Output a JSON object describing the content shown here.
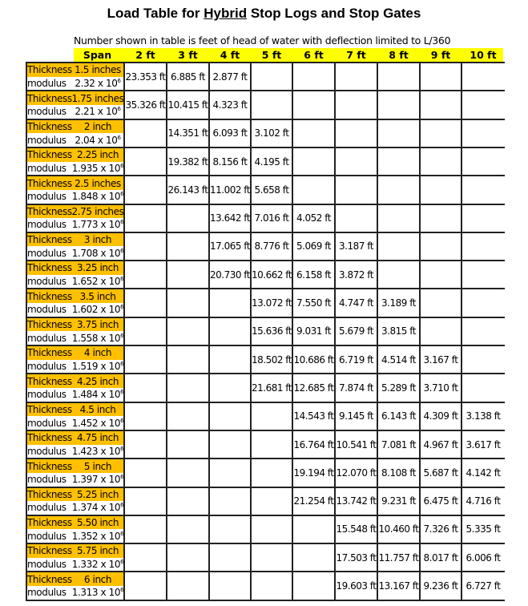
{
  "title": {
    "prefix": "Load Table for ",
    "emphasis": "Hybrid",
    "suffix": " Stop Logs and Stop Gates"
  },
  "subtitle": "Number shown in table is feet of head of water with deflection limited to L/360",
  "colors": {
    "header_bg": "#FFFF00",
    "thickness_bg": "#FFC000",
    "border": "#222222"
  },
  "header": {
    "span_label": "Span",
    "spans": [
      "2 ft",
      "3 ft",
      "4 ft",
      "5 ft",
      "6 ft",
      "7 ft",
      "8 ft",
      "9 ft",
      "10 ft"
    ]
  },
  "labels": {
    "thickness": "Thickness",
    "modulus": "modulus",
    "modulus_suffix": " x 10",
    "modulus_exponent": "6"
  },
  "rows": [
    {
      "thickness": "1.5 inches",
      "modulus": "2.32",
      "values": [
        "23.353 ft",
        "6.885 ft",
        "2.877 ft",
        null,
        null,
        null,
        null,
        null,
        null
      ]
    },
    {
      "thickness": "1.75 inches",
      "modulus": "2.21",
      "values": [
        "35.326 ft",
        "10.415 ft",
        "4.323 ft",
        null,
        null,
        null,
        null,
        null,
        null
      ]
    },
    {
      "thickness": "2 inch",
      "modulus": "2.04",
      "values": [
        null,
        "14.351 ft",
        "6.093 ft",
        "3.102 ft",
        null,
        null,
        null,
        null,
        null
      ]
    },
    {
      "thickness": "2.25 inch",
      "modulus": "1.935",
      "values": [
        null,
        "19.382 ft",
        "8.156 ft",
        "4.195 ft",
        null,
        null,
        null,
        null,
        null
      ]
    },
    {
      "thickness": "2.5 inches",
      "modulus": "1.848",
      "values": [
        null,
        "26.143 ft",
        "11.002 ft",
        "5.658 ft",
        null,
        null,
        null,
        null,
        null
      ]
    },
    {
      "thickness": "2.75 inches",
      "modulus": "1.773",
      "values": [
        null,
        null,
        "13.642 ft",
        "7.016 ft",
        "4.052 ft",
        null,
        null,
        null,
        null
      ]
    },
    {
      "thickness": "3 inch",
      "modulus": "1.708",
      "values": [
        null,
        null,
        "17.065 ft",
        "8.776 ft",
        "5.069 ft",
        "3.187 ft",
        null,
        null,
        null
      ]
    },
    {
      "thickness": "3.25 inch",
      "modulus": "1.652",
      "values": [
        null,
        null,
        "20.730 ft",
        "10.662 ft",
        "6.158 ft",
        "3.872 ft",
        null,
        null,
        null
      ]
    },
    {
      "thickness": "3.5 inch",
      "modulus": "1.602",
      "values": [
        null,
        null,
        null,
        "13.072 ft",
        "7.550 ft",
        "4.747 ft",
        "3.189 ft",
        null,
        null
      ]
    },
    {
      "thickness": "3.75 inch",
      "modulus": "1.558",
      "values": [
        null,
        null,
        null,
        "15.636 ft",
        "9.031 ft",
        "5.679 ft",
        "3.815 ft",
        null,
        null
      ]
    },
    {
      "thickness": "4 inch",
      "modulus": "1.519",
      "values": [
        null,
        null,
        null,
        "18.502 ft",
        "10.686 ft",
        "6.719 ft",
        "4.514 ft",
        "3.167 ft",
        null
      ]
    },
    {
      "thickness": "4.25 inch",
      "modulus": "1.484",
      "values": [
        null,
        null,
        null,
        "21.681 ft",
        "12.685 ft",
        "7.874 ft",
        "5.289 ft",
        "3.710 ft",
        null
      ]
    },
    {
      "thickness": "4.5 inch",
      "modulus": "1.452",
      "values": [
        null,
        null,
        null,
        null,
        "14.543 ft",
        "9.145 ft",
        "6.143 ft",
        "4.309 ft",
        "3.138 ft"
      ]
    },
    {
      "thickness": "4.75 inch",
      "modulus": "1.423",
      "values": [
        null,
        null,
        null,
        null,
        "16.764 ft",
        "10.541 ft",
        "7.081 ft",
        "4.967 ft",
        "3.617 ft"
      ]
    },
    {
      "thickness": "5 inch",
      "modulus": "1.397",
      "values": [
        null,
        null,
        null,
        null,
        "19.194 ft",
        "12.070 ft",
        "8.108 ft",
        "5.687 ft",
        "4.142 ft"
      ]
    },
    {
      "thickness": "5.25 inch",
      "modulus": "1.374",
      "values": [
        null,
        null,
        null,
        null,
        "21.254 ft",
        "13.742 ft",
        "9.231 ft",
        "6.475 ft",
        "4.716 ft"
      ]
    },
    {
      "thickness": "5.50 inch",
      "modulus": "1.352",
      "values": [
        null,
        null,
        null,
        null,
        null,
        "15.548 ft",
        "10.460 ft",
        "7.326 ft",
        "5.335 ft"
      ]
    },
    {
      "thickness": "5.75 inch",
      "modulus": "1.332",
      "values": [
        null,
        null,
        null,
        null,
        null,
        "17.503 ft",
        "11.757 ft",
        "8.017 ft",
        "6.006 ft"
      ]
    },
    {
      "thickness": "6 inch",
      "modulus": "1.313",
      "values": [
        null,
        null,
        null,
        null,
        null,
        "19.603 ft",
        "13.167 ft",
        "9.236 ft",
        "6.727 ft"
      ]
    }
  ]
}
